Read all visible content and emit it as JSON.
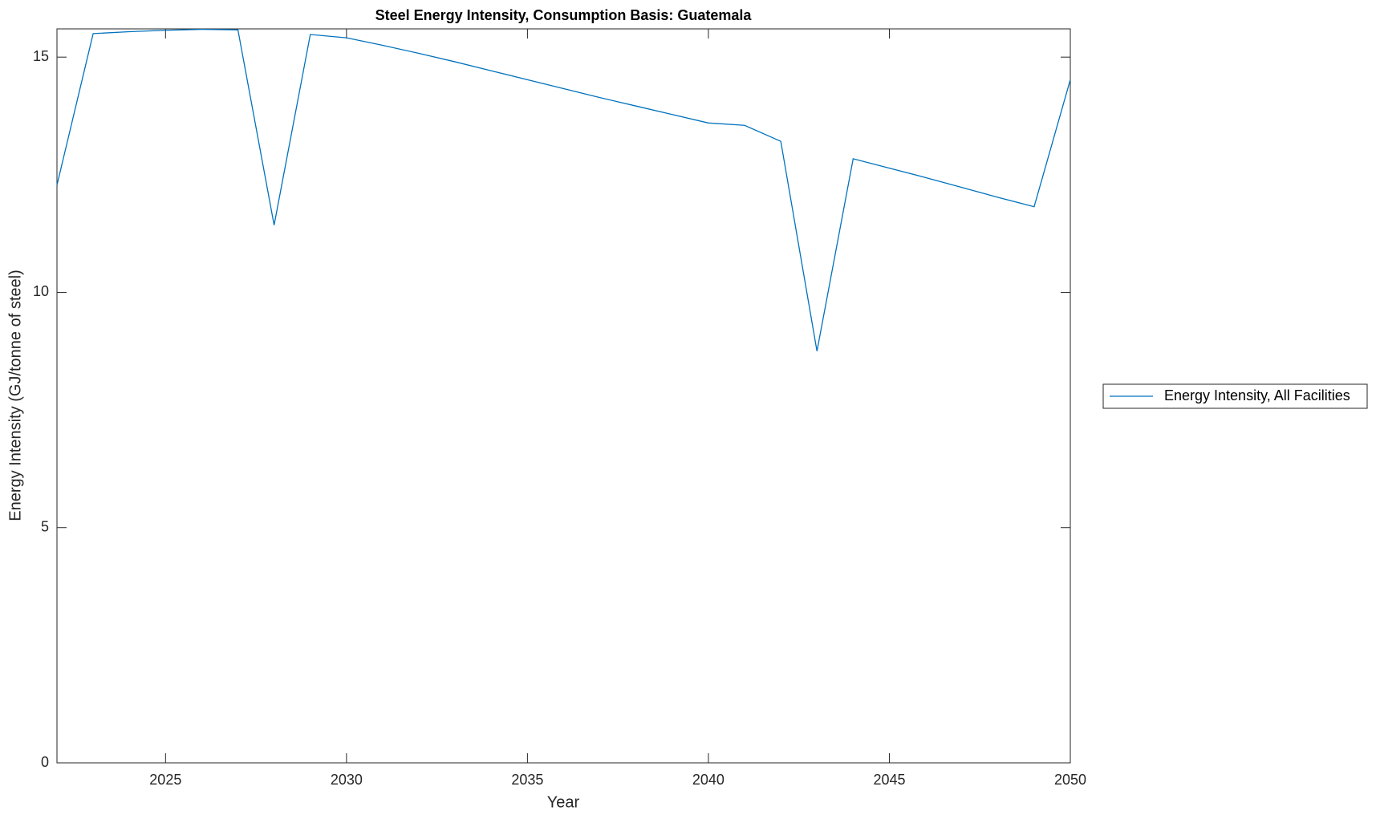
{
  "chart_data": {
    "type": "line",
    "title": "Steel Energy Intensity, Consumption Basis: Guatemala",
    "x_label": "Year",
    "y_label": "Energy Intensity (GJ/tonne of steel)",
    "x": [
      2022,
      2023,
      2024,
      2025,
      2026,
      2027,
      2028,
      2029,
      2030,
      2031,
      2032,
      2033,
      2034,
      2035,
      2036,
      2037,
      2038,
      2039,
      2040,
      2041,
      2042,
      2043,
      2044,
      2045,
      2046,
      2047,
      2048,
      2049,
      2050
    ],
    "series": [
      {
        "name": "Energy Intensity, All Facilities",
        "color": "#0072bd",
        "values": [
          12.28,
          15.5,
          15.54,
          15.57,
          15.59,
          15.58,
          11.43,
          15.48,
          15.41,
          15.25,
          15.08,
          14.9,
          14.71,
          14.52,
          14.33,
          14.14,
          13.96,
          13.78,
          13.6,
          13.55,
          13.21,
          8.75,
          12.84,
          12.64,
          12.44,
          12.23,
          12.02,
          11.82,
          14.52
        ]
      }
    ],
    "xlim": [
      2022,
      2050
    ],
    "xticks": [
      2025,
      2030,
      2035,
      2040,
      2045,
      2050
    ],
    "ylim": [
      0,
      15.6
    ],
    "yticks": [
      0,
      5,
      10,
      15
    ],
    "legend": "outside-right"
  }
}
